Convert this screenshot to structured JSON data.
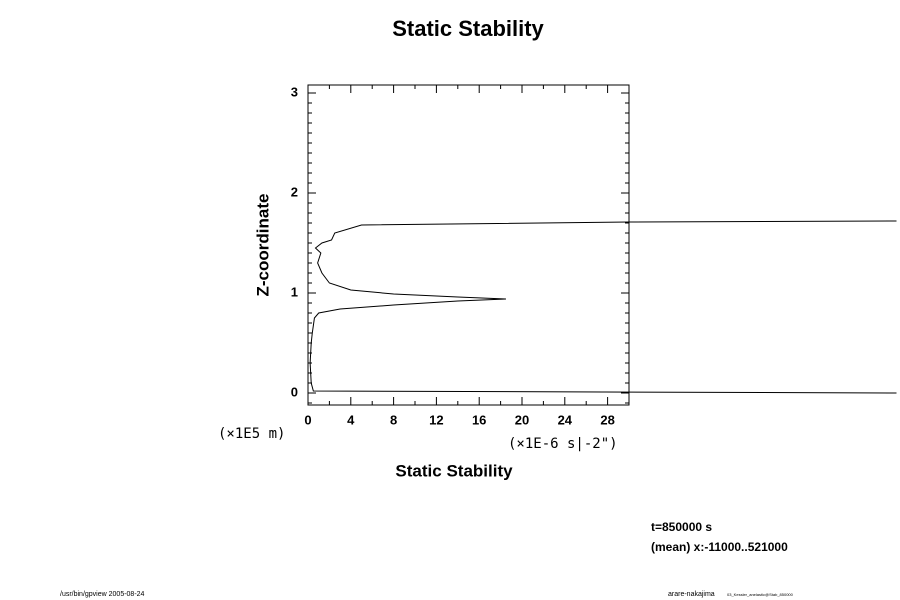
{
  "chart_data": {
    "type": "line",
    "title": "Static Stability",
    "x_label": "Static Stability",
    "y_label": "Z-coordinate",
    "x_unit": "(×1E-6 s|-2\")",
    "y_unit": "(×1E5 m)",
    "annotations": [
      "t=850000 s",
      "(mean) x:-11000..521000"
    ],
    "footer_left": "/usr/bin/gpview 2005-08-24",
    "footer_right": "arare-nakajima",
    "footer_right_small": "03_Kessler_anelastic@Stab_850000",
    "color": "#000000",
    "x": [
      55,
      0.5,
      0.3,
      0.2,
      0.3,
      0.4,
      0.6,
      1.0,
      3,
      8,
      14,
      18.5,
      14,
      8,
      4,
      2,
      1.3,
      0.9,
      1.2,
      0.7,
      1.3,
      2.2,
      2.5,
      5,
      30,
      55
    ],
    "y": [
      0.0,
      0.02,
      0.1,
      0.3,
      0.5,
      0.6,
      0.75,
      0.8,
      0.84,
      0.88,
      0.92,
      0.94,
      0.96,
      0.99,
      1.03,
      1.1,
      1.2,
      1.3,
      1.4,
      1.45,
      1.5,
      1.53,
      1.6,
      1.68,
      1.71,
      1.72
    ],
    "xlim": [
      0,
      30
    ],
    "ylim": [
      -0.12,
      3.08
    ],
    "xticks": [
      0,
      4,
      8,
      12,
      16,
      20,
      24,
      28
    ],
    "yticks": [
      0,
      1,
      2,
      3
    ],
    "xminorticks": [
      2,
      6,
      10,
      14,
      18,
      22,
      26,
      30
    ],
    "yminorticks": [
      -0.1,
      0.1,
      0.2,
      0.3,
      0.4,
      0.5,
      0.6,
      0.7,
      0.8,
      0.9,
      1.1,
      1.2,
      1.3,
      1.4,
      1.5,
      1.6,
      1.7,
      1.8,
      1.9,
      2.1,
      2.2,
      2.3,
      2.4,
      2.5,
      2.6,
      2.7,
      2.8,
      2.9,
      3.0
    ]
  }
}
